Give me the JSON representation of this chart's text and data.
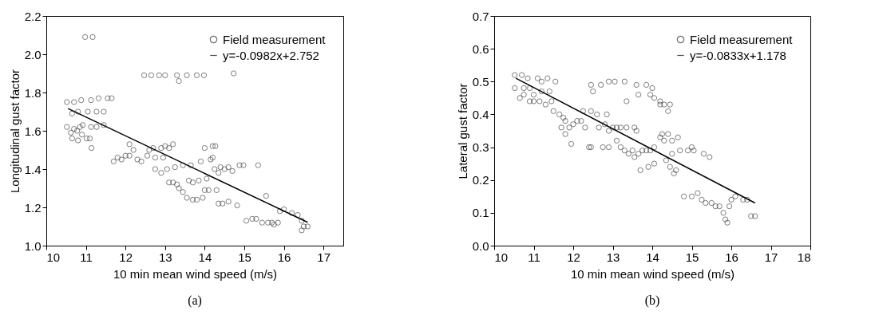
{
  "chart_data": [
    {
      "type": "scatter",
      "xlabel": "10 min mean wind speed (m/s)",
      "ylabel": "Longitudinal gust factor",
      "annotations": [
        "(a)"
      ],
      "xlim": [
        10,
        17.5
      ],
      "xticks": [
        10,
        11,
        12,
        13,
        14,
        15,
        16,
        17
      ],
      "ylim": [
        1.0,
        2.2
      ],
      "yticks": [
        {
          "value": 1.0,
          "label": "1.0"
        },
        1.2,
        1.4,
        1.6,
        1.8,
        {
          "value": 2.0,
          "label": "2.0"
        },
        2.2
      ],
      "grid": false,
      "legend": "top right",
      "series": [
        {
          "name": "Field measurement",
          "marker": "circle",
          "color": "#333333",
          "x": [
            10.98,
            11.17,
            12.47,
            12.65,
            12.85,
            13.0,
            13.3,
            13.35,
            13.55,
            13.8,
            13.98,
            14.73,
            10.52,
            10.7,
            10.88,
            11.13,
            11.32,
            11.55,
            11.65,
            10.65,
            10.8,
            11.05,
            11.27,
            11.45,
            10.52,
            10.62,
            10.7,
            10.78,
            10.85,
            10.92,
            11.13,
            11.27,
            11.45,
            10.65,
            10.8,
            11.02,
            11.1,
            11.14,
            10.9,
            11.7,
            11.8,
            11.9,
            12.0,
            12.1,
            12.2,
            12.3,
            12.4,
            12.55,
            12.6,
            12.7,
            12.75,
            12.1,
            12.75,
            12.9,
            12.95,
            12.9,
            13.0,
            13.1,
            13.2,
            13.05,
            13.1,
            13.2,
            13.3,
            13.35,
            13.45,
            13.55,
            13.7,
            13.8,
            13.95,
            13.6,
            13.7,
            13.85,
            13.25,
            13.45,
            13.65,
            13.9,
            14.0,
            14.05,
            14.0,
            14.1,
            14.15,
            14.2,
            14.2,
            14.27,
            14.25,
            14.3,
            14.35,
            14.4,
            14.5,
            14.6,
            14.7,
            14.35,
            14.45,
            14.6,
            14.82,
            14.88,
            14.98,
            15.35,
            15.05,
            15.2,
            15.3,
            15.45,
            15.6,
            15.7,
            15.75,
            15.85,
            15.55,
            15.9,
            16.0,
            16.2,
            16.35,
            16.45,
            16.5,
            16.6,
            16.45
          ],
          "values": [
            2.09,
            2.09,
            1.89,
            1.89,
            1.89,
            1.89,
            1.89,
            1.86,
            1.89,
            1.89,
            1.89,
            1.9,
            1.75,
            1.75,
            1.76,
            1.76,
            1.77,
            1.77,
            1.77,
            1.69,
            1.7,
            1.7,
            1.7,
            1.7,
            1.62,
            1.59,
            1.61,
            1.6,
            1.62,
            1.63,
            1.62,
            1.62,
            1.63,
            1.56,
            1.55,
            1.56,
            1.56,
            1.51,
            1.58,
            1.44,
            1.46,
            1.45,
            1.47,
            1.47,
            1.5,
            1.45,
            1.44,
            1.47,
            1.5,
            1.51,
            1.46,
            1.53,
            1.4,
            1.38,
            1.46,
            1.51,
            1.52,
            1.51,
            1.53,
            1.4,
            1.33,
            1.33,
            1.32,
            1.3,
            1.28,
            1.25,
            1.24,
            1.24,
            1.25,
            1.34,
            1.33,
            1.34,
            1.41,
            1.42,
            1.42,
            1.44,
            1.51,
            1.35,
            1.29,
            1.29,
            1.45,
            1.46,
            1.52,
            1.52,
            1.4,
            1.29,
            1.38,
            1.41,
            1.4,
            1.41,
            1.39,
            1.22,
            1.22,
            1.23,
            1.21,
            1.42,
            1.42,
            1.42,
            1.13,
            1.14,
            1.14,
            1.12,
            1.12,
            1.12,
            1.11,
            1.12,
            1.26,
            1.18,
            1.19,
            1.17,
            1.16,
            1.13,
            1.1,
            1.1,
            1.08
          ]
        },
        {
          "name": "y=-0.0982x+2.752",
          "type": "line",
          "color": "#000000",
          "x": [
            10.55,
            16.6
          ],
          "values": [
            1.716,
            1.122
          ]
        }
      ]
    },
    {
      "type": "scatter",
      "xlabel": "10 min mean wind speed (m/s)",
      "ylabel": "Lateral gust factor",
      "annotations": [
        "(b)"
      ],
      "xlim": [
        10,
        18
      ],
      "xticks": [
        10,
        11,
        12,
        13,
        14,
        15,
        16,
        17,
        18
      ],
      "ylim": [
        0.0,
        0.7
      ],
      "yticks": [
        {
          "value": 0,
          "label": "0.0"
        },
        0.1,
        0.2,
        0.3,
        0.4,
        0.5,
        0.6,
        0.7
      ],
      "grid": false,
      "legend": "top right",
      "series": [
        {
          "name": "Field measurement",
          "marker": "circle",
          "color": "#333333",
          "x": [
            10.52,
            10.7,
            10.85,
            11.1,
            11.2,
            11.35,
            11.55,
            10.52,
            10.75,
            10.9,
            11.0,
            11.2,
            11.4,
            10.65,
            10.75,
            10.9,
            11.0,
            11.15,
            11.3,
            11.45,
            11.5,
            11.65,
            11.75,
            11.8,
            11.7,
            11.8,
            11.9,
            11.95,
            12.0,
            12.1,
            12.2,
            12.25,
            12.3,
            12.45,
            12.6,
            12.65,
            12.8,
            12.85,
            12.9,
            13.0,
            13.1,
            13.2,
            13.35,
            13.55,
            13.6,
            12.4,
            12.45,
            12.75,
            12.9,
            12.45,
            12.5,
            12.7,
            12.9,
            13.05,
            13.3,
            13.6,
            13.65,
            13.85,
            13.95,
            14.0,
            14.05,
            14.2,
            14.2,
            14.3,
            14.4,
            14.45,
            13.35,
            13.1,
            13.2,
            13.3,
            13.4,
            13.5,
            13.55,
            13.65,
            13.75,
            13.85,
            13.95,
            14.05,
            13.7,
            13.9,
            14.05,
            14.2,
            14.25,
            14.3,
            14.4,
            14.35,
            14.45,
            14.55,
            14.6,
            14.5,
            14.65,
            14.5,
            14.7,
            14.9,
            15.0,
            15.05,
            15.3,
            15.45,
            14.8,
            15.0,
            15.15,
            15.25,
            15.35,
            15.5,
            15.6,
            15.7,
            15.8,
            15.85,
            15.9,
            15.95,
            16.0,
            16.1,
            16.3,
            16.4,
            16.5,
            16.6
          ],
          "values": [
            0.52,
            0.52,
            0.51,
            0.51,
            0.5,
            0.51,
            0.5,
            0.48,
            0.48,
            0.48,
            0.46,
            0.47,
            0.47,
            0.45,
            0.46,
            0.44,
            0.44,
            0.44,
            0.43,
            0.44,
            0.41,
            0.4,
            0.39,
            0.38,
            0.36,
            0.34,
            0.36,
            0.31,
            0.37,
            0.38,
            0.38,
            0.41,
            0.36,
            0.41,
            0.4,
            0.36,
            0.37,
            0.4,
            0.35,
            0.36,
            0.36,
            0.36,
            0.36,
            0.36,
            0.35,
            0.3,
            0.3,
            0.3,
            0.3,
            0.49,
            0.47,
            0.49,
            0.5,
            0.5,
            0.5,
            0.49,
            0.46,
            0.49,
            0.46,
            0.48,
            0.45,
            0.44,
            0.43,
            0.43,
            0.41,
            0.43,
            0.44,
            0.32,
            0.3,
            0.29,
            0.28,
            0.29,
            0.27,
            0.28,
            0.29,
            0.29,
            0.29,
            0.3,
            0.23,
            0.24,
            0.25,
            0.33,
            0.34,
            0.32,
            0.34,
            0.26,
            0.24,
            0.22,
            0.23,
            0.32,
            0.33,
            0.28,
            0.29,
            0.29,
            0.3,
            0.29,
            0.28,
            0.27,
            0.15,
            0.15,
            0.16,
            0.14,
            0.13,
            0.13,
            0.12,
            0.12,
            0.1,
            0.08,
            0.07,
            0.12,
            0.14,
            0.15,
            0.14,
            0.14,
            0.09,
            0.09
          ]
        },
        {
          "name": "y=-0.0833x+1.178",
          "type": "line",
          "color": "#000000",
          "x": [
            10.55,
            16.6
          ],
          "values": [
            0.51,
            0.13
          ]
        }
      ]
    }
  ]
}
